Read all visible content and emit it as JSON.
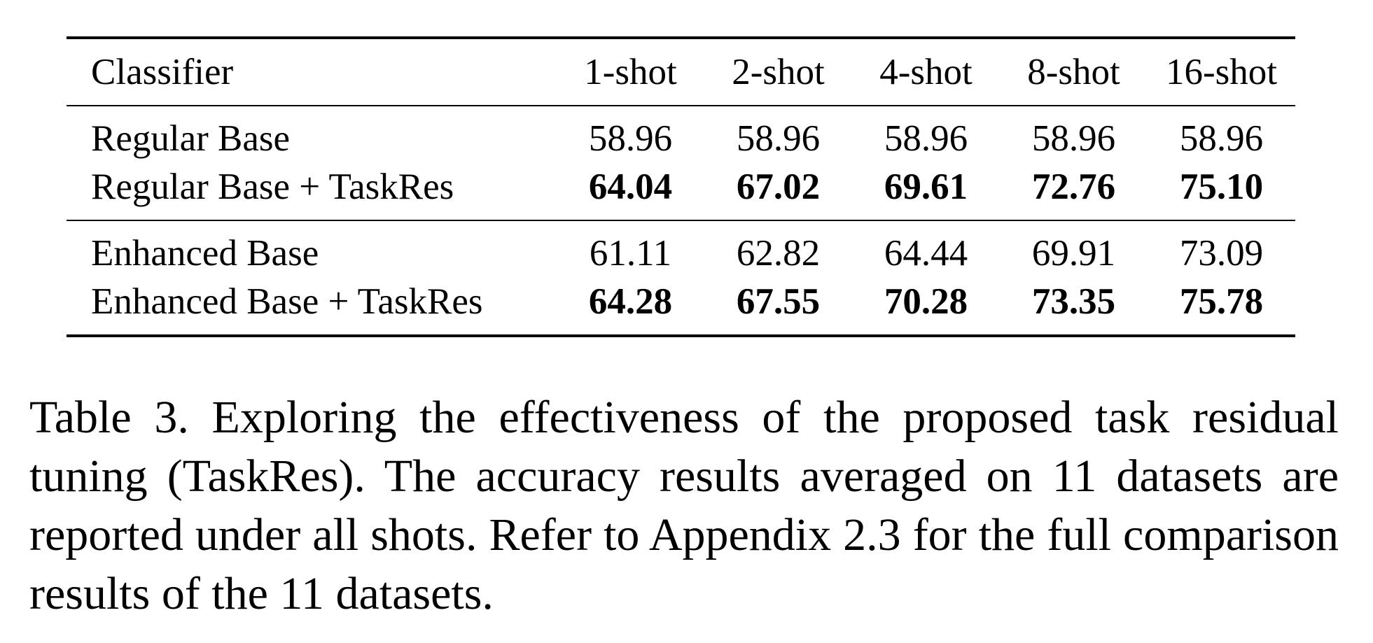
{
  "table": {
    "columns": [
      "Classifier",
      "1-shot",
      "2-shot",
      "4-shot",
      "8-shot",
      "16-shot"
    ],
    "groups": [
      {
        "rows": [
          {
            "label": "Regular Base",
            "values": [
              "58.96",
              "58.96",
              "58.96",
              "58.96",
              "58.96"
            ],
            "bold": false
          },
          {
            "label": "Regular Base + TaskRes",
            "values": [
              "64.04",
              "67.02",
              "69.61",
              "72.76",
              "75.10"
            ],
            "bold": true
          }
        ]
      },
      {
        "rows": [
          {
            "label": "Enhanced Base",
            "values": [
              "61.11",
              "62.82",
              "64.44",
              "69.91",
              "73.09"
            ],
            "bold": false
          },
          {
            "label": "Enhanced Base + TaskRes",
            "values": [
              "64.28",
              "67.55",
              "70.28",
              "73.35",
              "75.78"
            ],
            "bold": true
          }
        ]
      }
    ]
  },
  "caption": "Table 3. Exploring the effectiveness of the proposed task residual tuning (TaskRes). The accuracy results averaged on 11 datasets are reported under all shots. Refer to Appendix 2.3 for the full comparison results of the 11 datasets."
}
